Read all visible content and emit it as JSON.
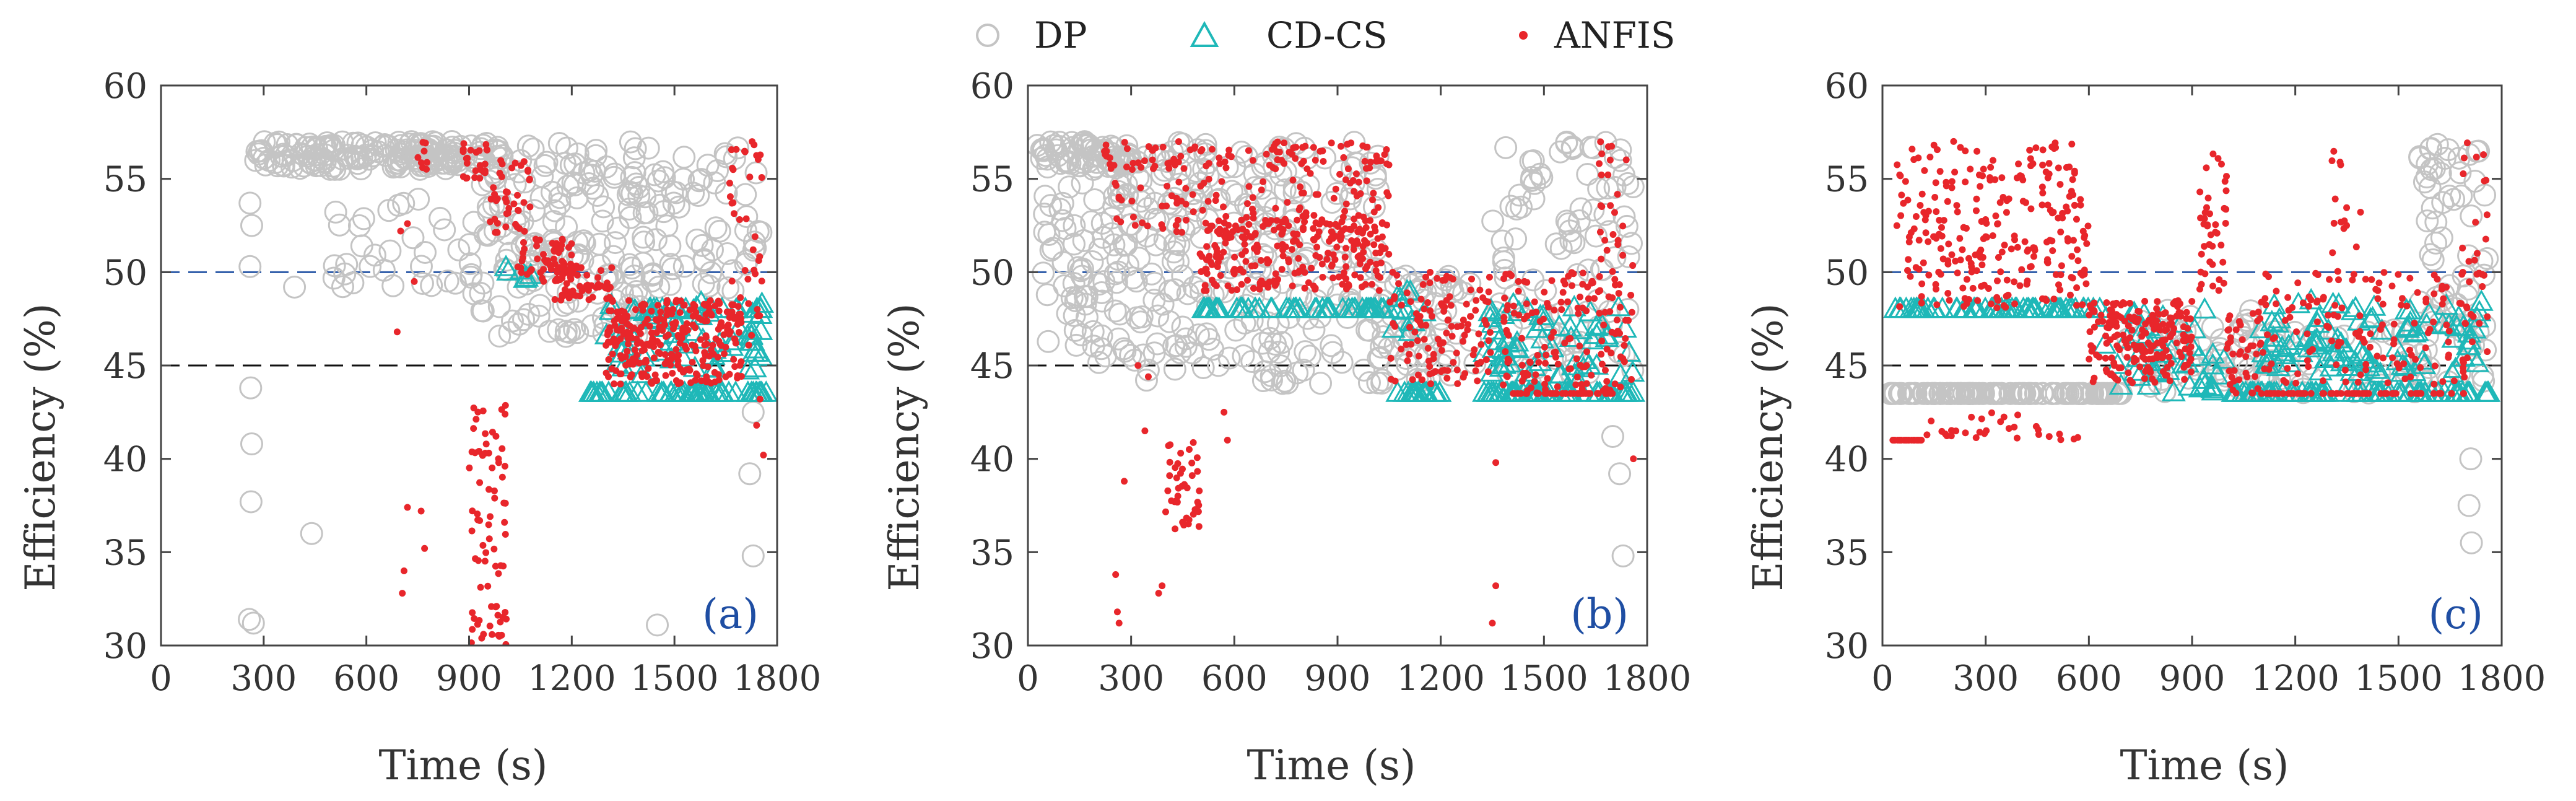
{
  "legend": {
    "items": [
      {
        "label": "DP",
        "marker": "open-circle",
        "color": "#c4c4c4"
      },
      {
        "label": "CD-CS",
        "marker": "open-triangle",
        "color": "#1fb8b8"
      },
      {
        "label": "ANFIS",
        "marker": "dot",
        "color": "#e8262b"
      }
    ]
  },
  "colors": {
    "dp": "#c4c4c4",
    "cdcs": "#1fb8b8",
    "anfis": "#e8262b",
    "blue_ref": "#2d5aa8",
    "black_ref": "#111111",
    "panel_label": "#1f4ea3",
    "axis": "#444444"
  },
  "chart_data": [
    {
      "type": "scatter",
      "panel_label": "(a)",
      "xlabel": "Time (s)",
      "ylabel": "Efficiency (%)",
      "xlim": [
        0,
        1800
      ],
      "ylim": [
        30,
        60
      ],
      "xticks": [
        0,
        300,
        600,
        900,
        1200,
        1500,
        1800
      ],
      "yticks": [
        30,
        35,
        40,
        45,
        50,
        55,
        60
      ],
      "reference_lines": [
        {
          "y": 50,
          "style": "dashed",
          "color": "blue"
        },
        {
          "y": 45,
          "style": "dashed",
          "color": "black"
        }
      ],
      "series": [
        {
          "name": "DP",
          "segments": [
            {
              "x0": 270,
              "x1": 1000,
              "y0": 55.5,
              "y1": 57,
              "n": 170
            },
            {
              "x0": 500,
              "x1": 900,
              "y0": 49,
              "y1": 54,
              "n": 30
            },
            {
              "x0": 900,
              "x1": 1430,
              "y0": 46.5,
              "y1": 57,
              "n": 180
            },
            {
              "x0": 1430,
              "x1": 1760,
              "y0": 49,
              "y1": 57,
              "n": 60
            }
          ],
          "points": [
            [
              260,
              53.7
            ],
            [
              265,
              52.5
            ],
            [
              260,
              50.3
            ],
            [
              262,
              43.8
            ],
            [
              265,
              40.8
            ],
            [
              263,
              37.7
            ],
            [
              258,
              31.4
            ],
            [
              270,
              31.2
            ],
            [
              440,
              36.0
            ],
            [
              390,
              49.2
            ],
            [
              1450,
              31.1
            ],
            [
              1720,
              39.2
            ],
            [
              1730,
              34.8
            ],
            [
              1730,
              42.5
            ]
          ]
        },
        {
          "name": "CD-CS",
          "segments": [
            {
              "x0": 1250,
              "x1": 1770,
              "y0": 43.5,
              "y1": 43.5,
              "n": 60
            },
            {
              "x0": 1300,
              "x1": 1770,
              "y0": 44.5,
              "y1": 48.5,
              "n": 70
            },
            {
              "x0": 1420,
              "x1": 1770,
              "y0": 48,
              "y1": 48,
              "n": 20
            },
            {
              "x0": 1000,
              "x1": 1100,
              "y0": 49.6,
              "y1": 50.3,
              "n": 6
            }
          ]
        },
        {
          "name": "ANFIS",
          "segments": [
            {
              "x0": 740,
              "x1": 780,
              "y0": 55.5,
              "y1": 57,
              "n": 8
            },
            {
              "x0": 880,
              "x1": 960,
              "y0": 55,
              "y1": 57,
              "n": 25
            },
            {
              "x0": 960,
              "x1": 1080,
              "y0": 52,
              "y1": 56,
              "n": 40
            },
            {
              "x0": 1040,
              "x1": 1200,
              "y0": 49.5,
              "y1": 52,
              "n": 60
            },
            {
              "x0": 1150,
              "x1": 1320,
              "y0": 48.5,
              "y1": 50.5,
              "n": 60
            },
            {
              "x0": 1300,
              "x1": 1700,
              "y0": 44,
              "y1": 48.5,
              "n": 280
            },
            {
              "x0": 1660,
              "x1": 1760,
              "y0": 46,
              "y1": 57,
              "n": 40
            },
            {
              "x0": 900,
              "x1": 1010,
              "y0": 30,
              "y1": 43,
              "n": 75
            }
          ],
          "points": [
            [
              720,
              37.4
            ],
            [
              710,
              34.0
            ],
            [
              705,
              32.8
            ],
            [
              760,
              37.2
            ],
            [
              770,
              35.2
            ],
            [
              700,
              52.2
            ],
            [
              720,
              52.6
            ],
            [
              690,
              46.8
            ],
            [
              740,
              49.5
            ],
            [
              1740,
              41.8
            ],
            [
              1760,
              40.2
            ],
            [
              1750,
              43.2
            ],
            [
              1730,
              51.2
            ]
          ]
        }
      ]
    },
    {
      "type": "scatter",
      "panel_label": "(b)",
      "xlabel": "Time (s)",
      "ylabel": "Efficiency (%)",
      "xlim": [
        0,
        1800
      ],
      "ylim": [
        30,
        60
      ],
      "xticks": [
        0,
        300,
        600,
        900,
        1200,
        1500,
        1800
      ],
      "yticks": [
        30,
        35,
        40,
        45,
        50,
        55,
        60
      ],
      "reference_lines": [
        {
          "y": 50,
          "style": "dashed",
          "color": "blue"
        },
        {
          "y": 45,
          "style": "dashed",
          "color": "black"
        }
      ],
      "series": [
        {
          "name": "DP",
          "segments": [
            {
              "x0": 20,
              "x1": 300,
              "y0": 55.5,
              "y1": 57,
              "n": 70
            },
            {
              "x0": 40,
              "x1": 300,
              "y0": 45,
              "y1": 55,
              "n": 80
            },
            {
              "x0": 300,
              "x1": 1050,
              "y0": 44,
              "y1": 57,
              "n": 260
            },
            {
              "x0": 1050,
              "x1": 1300,
              "y0": 44,
              "y1": 50,
              "n": 50
            },
            {
              "x0": 1350,
              "x1": 1760,
              "y0": 44,
              "y1": 57,
              "n": 100
            }
          ],
          "points": [
            [
              1720,
              39.2
            ],
            [
              1730,
              34.8
            ],
            [
              1700,
              41.2
            ]
          ]
        },
        {
          "name": "CD-CS",
          "segments": [
            {
              "x0": 480,
              "x1": 1050,
              "y0": 48,
              "y1": 48,
              "n": 55
            },
            {
              "x0": 1050,
              "x1": 1200,
              "y0": 43.5,
              "y1": 43.5,
              "n": 18
            },
            {
              "x0": 1060,
              "x1": 1160,
              "y0": 46,
              "y1": 49,
              "n": 12
            },
            {
              "x0": 1320,
              "x1": 1770,
              "y0": 43.5,
              "y1": 43.5,
              "n": 50
            },
            {
              "x0": 1320,
              "x1": 1770,
              "y0": 44,
              "y1": 48.5,
              "n": 60
            }
          ]
        },
        {
          "name": "ANFIS",
          "segments": [
            {
              "x0": 220,
              "x1": 1050,
              "y0": 55.5,
              "y1": 57,
              "n": 90
            },
            {
              "x0": 250,
              "x1": 1050,
              "y0": 52,
              "y1": 56,
              "n": 120
            },
            {
              "x0": 500,
              "x1": 1050,
              "y0": 49,
              "y1": 53,
              "n": 240
            },
            {
              "x0": 1050,
              "x1": 1350,
              "y0": 44,
              "y1": 50,
              "n": 120
            },
            {
              "x0": 1380,
              "x1": 1760,
              "y0": 43.5,
              "y1": 50,
              "n": 150
            },
            {
              "x0": 1400,
              "x1": 1700,
              "y0": 43.5,
              "y1": 43.5,
              "n": 40
            },
            {
              "x0": 400,
              "x1": 500,
              "y0": 36,
              "y1": 41,
              "n": 40
            },
            {
              "x0": 1660,
              "x1": 1760,
              "y0": 50,
              "y1": 57,
              "n": 25
            }
          ],
          "points": [
            [
              260,
              31.8
            ],
            [
              265,
              31.2
            ],
            [
              255,
              33.8
            ],
            [
              340,
              41.5
            ],
            [
              380,
              32.8
            ],
            [
              390,
              33.2
            ],
            [
              570,
              42.5
            ],
            [
              580,
              41.0
            ],
            [
              280,
              38.8
            ],
            [
              1360,
              33.2
            ],
            [
              1350,
              31.2
            ],
            [
              1360,
              39.8
            ],
            [
              1760,
              40.0
            ],
            [
              320,
              45.0
            ],
            [
              350,
              44.4
            ]
          ]
        }
      ]
    },
    {
      "type": "scatter",
      "panel_label": "(c)",
      "xlabel": "Time (s)",
      "ylabel": "Efficiency (%)",
      "xlim": [
        0,
        1800
      ],
      "ylim": [
        30,
        60
      ],
      "xticks": [
        0,
        300,
        600,
        900,
        1200,
        1500,
        1800
      ],
      "yticks": [
        30,
        35,
        40,
        45,
        50,
        55,
        60
      ],
      "reference_lines": [
        {
          "y": 50,
          "style": "dashed",
          "color": "blue"
        },
        {
          "y": 45,
          "style": "dashed",
          "color": "black"
        }
      ],
      "series": [
        {
          "name": "DP",
          "segments": [
            {
              "x0": 20,
              "x1": 700,
              "y0": 43.5,
              "y1": 43.5,
              "n": 140
            },
            {
              "x0": 700,
              "x1": 1080,
              "y0": 43.5,
              "y1": 48,
              "n": 50
            },
            {
              "x0": 1100,
              "x1": 1600,
              "y0": 43.5,
              "y1": 47,
              "n": 50
            },
            {
              "x0": 1560,
              "x1": 1760,
              "y0": 44,
              "y1": 57,
              "n": 70
            }
          ],
          "points": [
            [
              1710,
              40.0
            ],
            [
              1705,
              37.5
            ],
            [
              1712,
              35.5
            ]
          ]
        },
        {
          "name": "CD-CS",
          "segments": [
            {
              "x0": 20,
              "x1": 640,
              "y0": 48,
              "y1": 48,
              "n": 65
            },
            {
              "x0": 640,
              "x1": 1000,
              "y0": 43.5,
              "y1": 48,
              "n": 45
            },
            {
              "x0": 1000,
              "x1": 1770,
              "y0": 43.5,
              "y1": 43.5,
              "n": 80
            },
            {
              "x0": 1100,
              "x1": 1770,
              "y0": 44.5,
              "y1": 48.5,
              "n": 100
            }
          ]
        },
        {
          "name": "ANFIS",
          "segments": [
            {
              "x0": 30,
              "x1": 120,
              "y0": 41,
              "y1": 41,
              "n": 25
            },
            {
              "x0": 120,
              "x1": 580,
              "y0": 41,
              "y1": 42.5,
              "n": 30
            },
            {
              "x0": 40,
              "x1": 600,
              "y0": 48,
              "y1": 57,
              "n": 260
            },
            {
              "x0": 600,
              "x1": 900,
              "y0": 44,
              "y1": 48.5,
              "n": 200
            },
            {
              "x0": 920,
              "x1": 1000,
              "y0": 49,
              "y1": 56.5,
              "n": 40
            },
            {
              "x0": 1000,
              "x1": 1100,
              "y0": 43.5,
              "y1": 48,
              "n": 40
            },
            {
              "x0": 1100,
              "x1": 1700,
              "y0": 43.5,
              "y1": 43.5,
              "n": 60
            },
            {
              "x0": 1100,
              "x1": 1700,
              "y0": 44,
              "y1": 50,
              "n": 140
            },
            {
              "x0": 1300,
              "x1": 1400,
              "y0": 50,
              "y1": 57,
              "n": 15
            },
            {
              "x0": 1680,
              "x1": 1760,
              "y0": 45,
              "y1": 57,
              "n": 30
            }
          ]
        }
      ]
    }
  ]
}
